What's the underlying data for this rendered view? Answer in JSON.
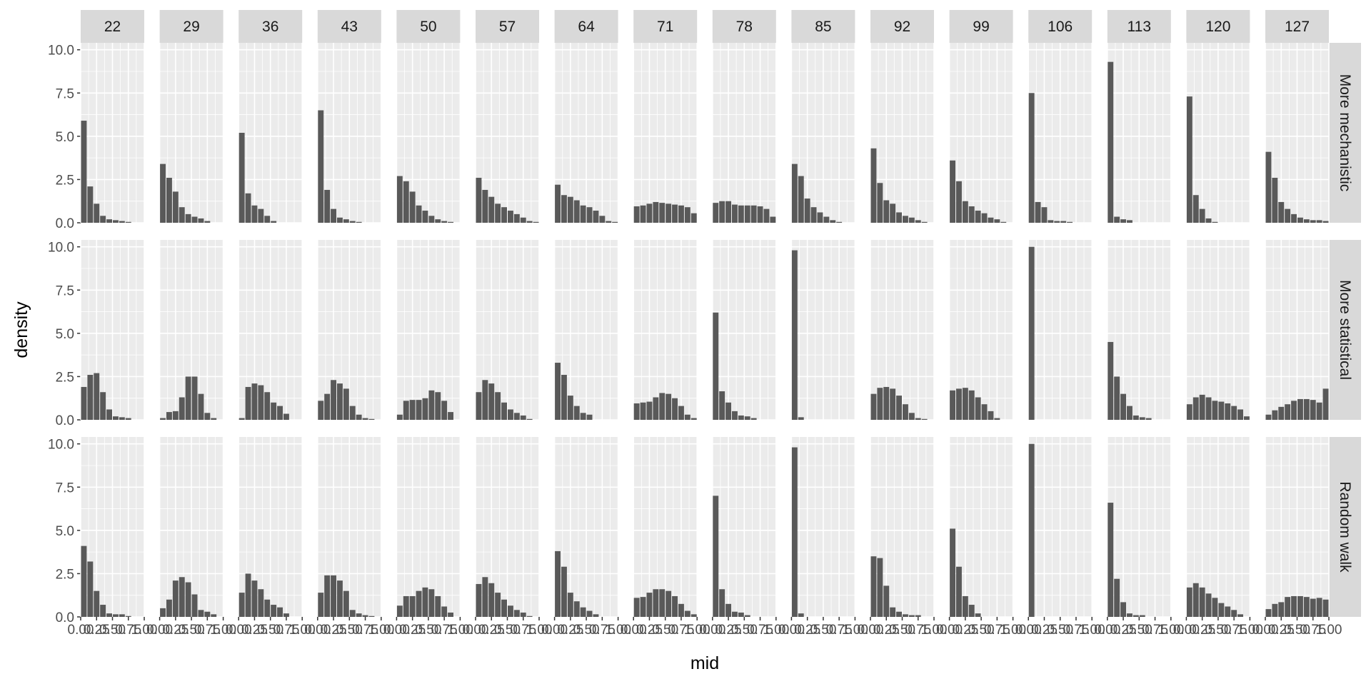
{
  "chart_data": {
    "type": "bar",
    "xlabel": "mid",
    "ylabel": "density",
    "ylim": [
      0,
      10.4
    ],
    "xlim": [
      0,
      1
    ],
    "yticks": [
      0,
      2.5,
      5,
      7.5,
      10
    ],
    "ytick_labels": [
      "0.0",
      "2.5",
      "5.0",
      "7.5",
      "10.0"
    ],
    "xticks": [
      0,
      0.25,
      0.5,
      0.75,
      1
    ],
    "xtick_labels": [
      "0.00",
      "0.25",
      "0.50",
      "0.75",
      "1.00"
    ],
    "bin_width": 0.1,
    "bin_centers": [
      0.05,
      0.15,
      0.25,
      0.35,
      0.45,
      0.55,
      0.65,
      0.75,
      0.85,
      0.95
    ],
    "grid": true,
    "legend": "none",
    "bar_color": "#595959",
    "panel_color": "#ebebeb",
    "strip_color": "#d9d9d9",
    "columns": [
      "22",
      "29",
      "36",
      "43",
      "50",
      "57",
      "64",
      "71",
      "78",
      "85",
      "92",
      "99",
      "106",
      "113",
      "120",
      "127"
    ],
    "rows": [
      {
        "name": "More mechanistic",
        "panels": [
          [
            5.9,
            2.1,
            1.1,
            0.4,
            0.2,
            0.15,
            0.1,
            0.05,
            0,
            0
          ],
          [
            3.4,
            2.6,
            1.8,
            0.9,
            0.5,
            0.35,
            0.25,
            0.1,
            0,
            0
          ],
          [
            5.2,
            1.7,
            1.0,
            0.8,
            0.4,
            0.1,
            0,
            0,
            0,
            0
          ],
          [
            6.5,
            1.9,
            0.8,
            0.3,
            0.2,
            0.1,
            0.05,
            0,
            0,
            0
          ],
          [
            2.7,
            2.4,
            1.8,
            1.0,
            0.7,
            0.4,
            0.2,
            0.1,
            0.05,
            0
          ],
          [
            2.6,
            1.9,
            1.5,
            1.1,
            0.9,
            0.7,
            0.5,
            0.3,
            0.1,
            0.05
          ],
          [
            2.2,
            1.6,
            1.5,
            1.3,
            1.0,
            0.9,
            0.7,
            0.4,
            0.1,
            0.05
          ],
          [
            0.95,
            1.0,
            1.1,
            1.2,
            1.15,
            1.1,
            1.05,
            1.0,
            0.9,
            0.55
          ],
          [
            1.15,
            1.25,
            1.25,
            1.05,
            1.0,
            1.0,
            1.0,
            0.95,
            0.8,
            0.35
          ],
          [
            3.4,
            2.7,
            1.4,
            0.9,
            0.6,
            0.35,
            0.15,
            0.05,
            0,
            0
          ],
          [
            4.3,
            2.3,
            1.3,
            1.1,
            0.6,
            0.4,
            0.3,
            0.15,
            0.05,
            0
          ],
          [
            3.6,
            2.4,
            1.25,
            0.95,
            0.7,
            0.55,
            0.3,
            0.2,
            0.05,
            0
          ],
          [
            7.5,
            1.2,
            0.9,
            0.15,
            0.1,
            0.1,
            0.05,
            0,
            0,
            0
          ],
          [
            9.3,
            0.35,
            0.2,
            0.15,
            0,
            0,
            0,
            0,
            0,
            0
          ],
          [
            7.3,
            1.6,
            0.8,
            0.25,
            0.05,
            0,
            0,
            0,
            0,
            0
          ],
          [
            4.1,
            2.6,
            1.2,
            0.8,
            0.5,
            0.3,
            0.2,
            0.15,
            0.15,
            0.1
          ]
        ]
      },
      {
        "name": "More statistical",
        "panels": [
          [
            1.9,
            2.6,
            2.7,
            1.6,
            0.6,
            0.2,
            0.15,
            0.1,
            0,
            0
          ],
          [
            0.1,
            0.45,
            0.5,
            1.3,
            2.5,
            2.5,
            1.5,
            0.4,
            0.1,
            0
          ],
          [
            0.1,
            1.9,
            2.1,
            2.0,
            1.6,
            1.0,
            0.8,
            0.35,
            0,
            0
          ],
          [
            1.1,
            1.5,
            2.3,
            2.1,
            1.8,
            0.8,
            0.3,
            0.1,
            0.05,
            0
          ],
          [
            0.3,
            1.1,
            1.15,
            1.15,
            1.25,
            1.7,
            1.6,
            1.1,
            0.45,
            0
          ],
          [
            1.6,
            2.3,
            2.1,
            1.6,
            1.0,
            0.6,
            0.4,
            0.25,
            0.05,
            0
          ],
          [
            3.3,
            2.6,
            1.4,
            0.8,
            0.4,
            0.3,
            0,
            0,
            0,
            0
          ],
          [
            0.95,
            1.0,
            1.05,
            1.3,
            1.55,
            1.5,
            1.25,
            0.8,
            0.3,
            0.1
          ],
          [
            6.2,
            1.65,
            1.0,
            0.5,
            0.25,
            0.2,
            0.1,
            0,
            0,
            0
          ],
          [
            9.8,
            0.15,
            0,
            0,
            0,
            0,
            0,
            0,
            0,
            0
          ],
          [
            1.5,
            1.85,
            1.9,
            1.8,
            1.4,
            0.9,
            0.4,
            0.1,
            0.05,
            0
          ],
          [
            1.7,
            1.8,
            1.85,
            1.7,
            1.3,
            0.9,
            0.5,
            0.1,
            0,
            0
          ],
          [
            10.0,
            0,
            0,
            0,
            0,
            0,
            0,
            0,
            0,
            0
          ],
          [
            4.5,
            2.5,
            1.5,
            0.8,
            0.25,
            0.15,
            0.1,
            0,
            0,
            0
          ],
          [
            0.9,
            1.3,
            1.45,
            1.3,
            1.1,
            1.05,
            0.95,
            0.8,
            0.6,
            0.2
          ],
          [
            0.3,
            0.55,
            0.75,
            0.9,
            1.1,
            1.2,
            1.2,
            1.15,
            1.0,
            1.8
          ]
        ]
      },
      {
        "name": "Random walk",
        "panels": [
          [
            4.1,
            3.2,
            1.5,
            0.7,
            0.2,
            0.15,
            0.15,
            0.05,
            0,
            0
          ],
          [
            0.5,
            1.0,
            2.1,
            2.3,
            2.0,
            1.3,
            0.4,
            0.3,
            0.15,
            0
          ],
          [
            1.4,
            2.5,
            2.1,
            1.6,
            1.0,
            0.7,
            0.55,
            0.2,
            0,
            0
          ],
          [
            1.4,
            2.4,
            2.4,
            2.1,
            1.5,
            0.4,
            0.2,
            0.1,
            0.05,
            0
          ],
          [
            0.65,
            1.2,
            1.2,
            1.5,
            1.7,
            1.6,
            1.2,
            0.6,
            0.25,
            0
          ],
          [
            1.9,
            2.3,
            1.95,
            1.4,
            1.0,
            0.65,
            0.4,
            0.25,
            0.05,
            0
          ],
          [
            3.8,
            2.9,
            1.4,
            0.9,
            0.55,
            0.35,
            0.15,
            0,
            0,
            0
          ],
          [
            1.1,
            1.15,
            1.4,
            1.6,
            1.6,
            1.5,
            1.2,
            0.75,
            0.35,
            0.15
          ],
          [
            7.0,
            1.6,
            0.75,
            0.3,
            0.25,
            0.1,
            0,
            0,
            0,
            0
          ],
          [
            9.8,
            0.2,
            0,
            0,
            0,
            0,
            0,
            0,
            0,
            0
          ],
          [
            3.5,
            3.4,
            1.8,
            0.55,
            0.3,
            0.15,
            0.1,
            0.1,
            0,
            0
          ],
          [
            5.1,
            2.9,
            1.2,
            0.7,
            0.2,
            0,
            0,
            0,
            0,
            0
          ],
          [
            10.0,
            0,
            0,
            0,
            0,
            0,
            0,
            0,
            0,
            0
          ],
          [
            6.6,
            2.2,
            0.85,
            0.2,
            0.1,
            0.1,
            0,
            0,
            0,
            0
          ],
          [
            1.7,
            1.95,
            1.7,
            1.35,
            1.1,
            0.8,
            0.6,
            0.4,
            0.15,
            0
          ],
          [
            0.45,
            0.75,
            0.85,
            1.15,
            1.2,
            1.2,
            1.15,
            1.05,
            1.1,
            1.0
          ]
        ]
      }
    ]
  }
}
